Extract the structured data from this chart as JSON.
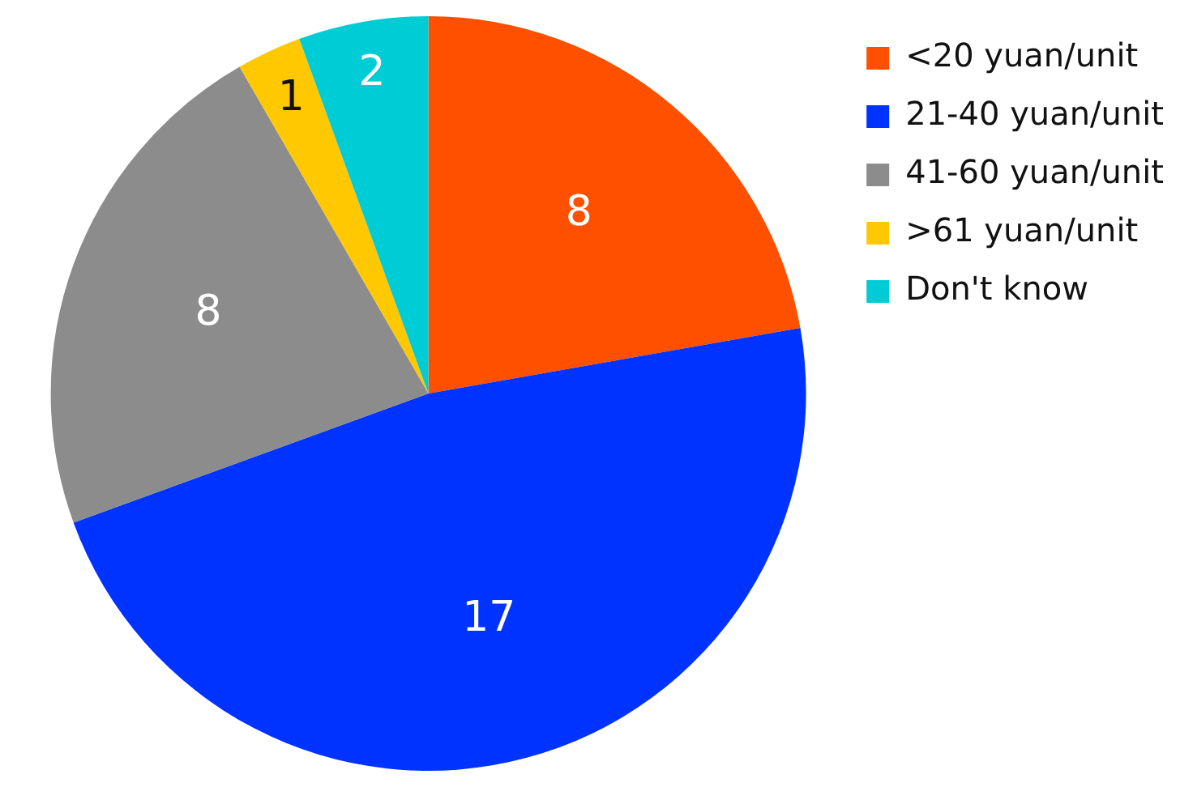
{
  "chart_data": {
    "type": "pie",
    "categories": [
      "<20 yuan/unit",
      "21-40 yuan/unit",
      "41-60 yuan/unit",
      ">61 yuan/unit",
      "Don't know"
    ],
    "values": [
      8,
      17,
      8,
      1,
      2
    ],
    "colors": [
      "#ff5000",
      "#0033ff",
      "#8c8c8c",
      "#ffc800",
      "#00ccd6"
    ],
    "data_labels": true,
    "legend": "right"
  }
}
